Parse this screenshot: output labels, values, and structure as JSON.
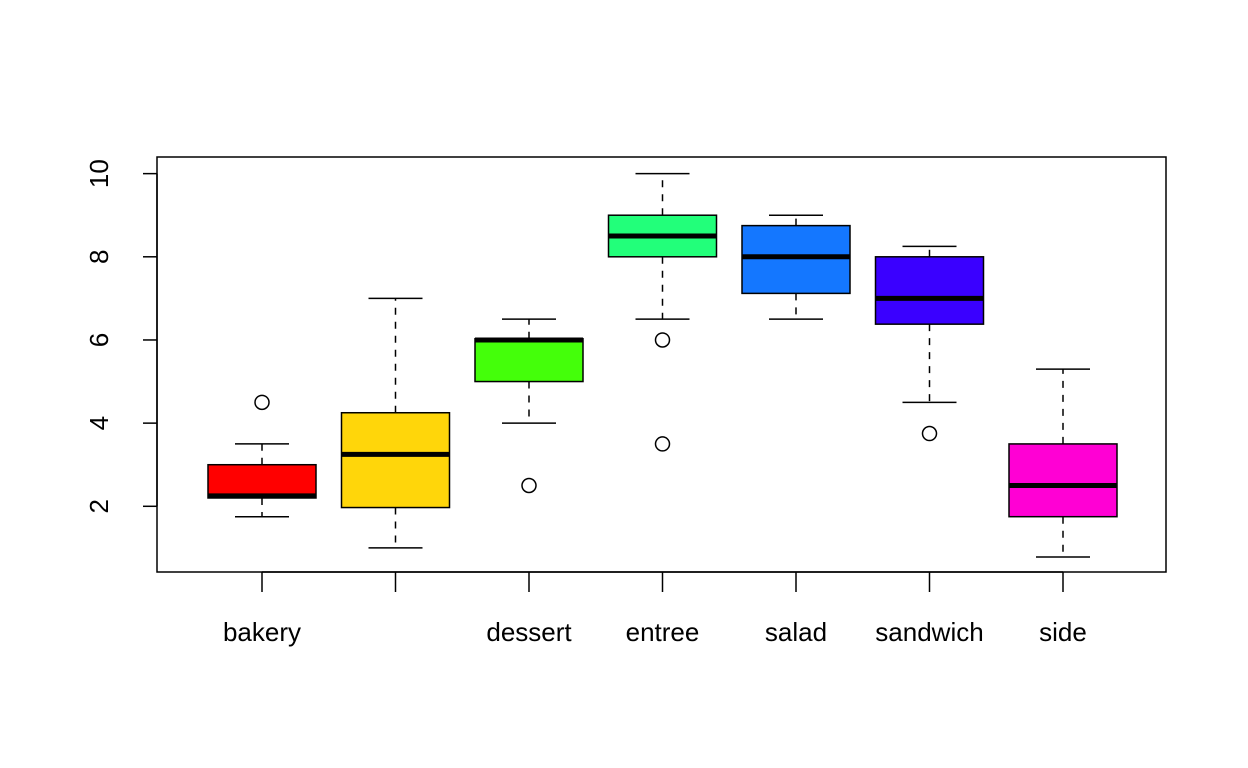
{
  "chart_data": {
    "type": "boxplot",
    "title": "",
    "xlabel": "",
    "ylabel": "",
    "ylim": [
      0.42,
      10.4
    ],
    "yticks": [
      2,
      4,
      6,
      8,
      10
    ],
    "grid": false,
    "legend": "none",
    "categories": [
      "bakery",
      "",
      "dessert",
      "entree",
      "salad",
      "sandwich",
      "side"
    ],
    "boxes": [
      {
        "label": "bakery",
        "color": "#FF0000",
        "whisker_low": 1.75,
        "q1": 2.2,
        "median": 2.25,
        "q3": 3.0,
        "whisker_high": 3.5,
        "outliers": [
          4.5
        ]
      },
      {
        "label": "",
        "color": "#FFD60A",
        "whisker_low": 1.0,
        "q1": 1.97,
        "median": 3.25,
        "q3": 4.25,
        "whisker_high": 7.0,
        "outliers": []
      },
      {
        "label": "dessert",
        "color": "#44FF0A",
        "whisker_low": 4.0,
        "q1": 5.0,
        "median": 6.0,
        "q3": 6.03,
        "whisker_high": 6.5,
        "outliers": [
          2.5
        ]
      },
      {
        "label": "entree",
        "color": "#22FF7A",
        "whisker_low": 6.5,
        "q1": 8.0,
        "median": 8.5,
        "q3": 9.0,
        "whisker_high": 10.0,
        "outliers": [
          6.0,
          3.5
        ]
      },
      {
        "label": "salad",
        "color": "#1477FF",
        "whisker_low": 6.5,
        "q1": 7.12,
        "median": 8.0,
        "q3": 8.75,
        "whisker_high": 9.0,
        "outliers": []
      },
      {
        "label": "sandwich",
        "color": "#3A00FF",
        "whisker_low": 4.5,
        "q1": 6.38,
        "median": 7.0,
        "q3": 8.0,
        "whisker_high": 8.25,
        "outliers": [
          3.75
        ]
      },
      {
        "label": "side",
        "color": "#FF00D4",
        "whisker_low": 0.78,
        "q1": 1.75,
        "median": 2.5,
        "q3": 3.5,
        "whisker_high": 5.3,
        "outliers": []
      }
    ]
  }
}
